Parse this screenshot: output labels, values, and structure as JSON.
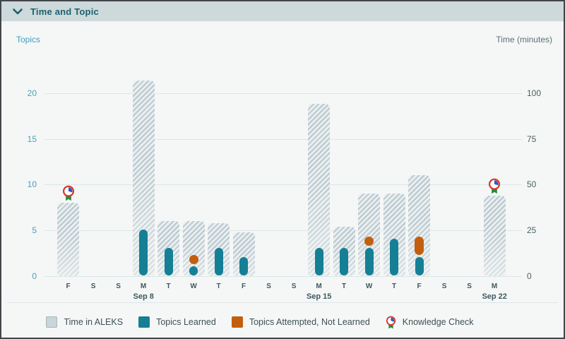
{
  "header": {
    "title": "Time and Topic"
  },
  "colors": {
    "header_bg": "#cdd9db",
    "header_text": "#1d6170",
    "time_bar_base": "#e9eef0",
    "time_bar_stripe": "#b9c8ce",
    "time_swatch": "#c9d5d9",
    "learned": "#157f95",
    "attempted": "#c35e0e",
    "kc_red": "#d6352a",
    "kc_blue": "#2f56c8",
    "kc_green": "#1e8e3e",
    "gridline": "#dde6e8",
    "left_tick_text": "#4aa0bc",
    "right_tick_text": "#4d5e63"
  },
  "legend": {
    "items": [
      {
        "key": "time_in_aleks",
        "label": "Time in ALEKS"
      },
      {
        "key": "topics_learned",
        "label": "Topics Learned"
      },
      {
        "key": "topics_attempted_not_learned",
        "label": "Topics Attempted, Not Learned"
      },
      {
        "key": "knowledge_check",
        "label": "Knowledge Check",
        "icon": "knowledge-check-icon"
      }
    ]
  },
  "chart_data": {
    "type": "bar",
    "title": "Time and Topic",
    "grid": true,
    "left_axis": {
      "label": "Topics",
      "min": 0,
      "max": 20,
      "ticks": [
        0,
        5,
        10,
        15,
        20
      ]
    },
    "right_axis": {
      "label": "Time (minutes)",
      "min": 0,
      "max": 100,
      "ticks": [
        0,
        25,
        50,
        75,
        100
      ]
    },
    "minutes_per_topic_unit": 5,
    "days": [
      {
        "day": "F",
        "date": "",
        "time_minutes": 40,
        "topics_learned": 0,
        "topics_attempted": 0,
        "knowledge_check": true
      },
      {
        "day": "S",
        "date": "",
        "time_minutes": 0,
        "topics_learned": 0,
        "topics_attempted": 0,
        "knowledge_check": false
      },
      {
        "day": "S",
        "date": "",
        "time_minutes": 0,
        "topics_learned": 0,
        "topics_attempted": 0,
        "knowledge_check": false
      },
      {
        "day": "M",
        "date": "Sep 8",
        "time_minutes": 107,
        "topics_learned": 5,
        "topics_attempted": 0,
        "knowledge_check": false
      },
      {
        "day": "T",
        "date": "",
        "time_minutes": 30,
        "topics_learned": 3,
        "topics_attempted": 0,
        "knowledge_check": false
      },
      {
        "day": "W",
        "date": "",
        "time_minutes": 30,
        "topics_learned": 1,
        "topics_attempted": 1,
        "knowledge_check": false
      },
      {
        "day": "T",
        "date": "",
        "time_minutes": 29,
        "topics_learned": 3,
        "topics_attempted": 0,
        "knowledge_check": false
      },
      {
        "day": "F",
        "date": "",
        "time_minutes": 24,
        "topics_learned": 2,
        "topics_attempted": 0,
        "knowledge_check": false
      },
      {
        "day": "S",
        "date": "",
        "time_minutes": 0,
        "topics_learned": 0,
        "topics_attempted": 0,
        "knowledge_check": false
      },
      {
        "day": "S",
        "date": "",
        "time_minutes": 0,
        "topics_learned": 0,
        "topics_attempted": 0,
        "knowledge_check": false
      },
      {
        "day": "M",
        "date": "Sep 15",
        "time_minutes": 94,
        "topics_learned": 3,
        "topics_attempted": 0,
        "knowledge_check": false
      },
      {
        "day": "T",
        "date": "",
        "time_minutes": 27,
        "topics_learned": 3,
        "topics_attempted": 0,
        "knowledge_check": false
      },
      {
        "day": "W",
        "date": "",
        "time_minutes": 45,
        "topics_learned": 3,
        "topics_attempted": 1,
        "knowledge_check": false
      },
      {
        "day": "T",
        "date": "",
        "time_minutes": 45,
        "topics_learned": 4,
        "topics_attempted": 0,
        "knowledge_check": false
      },
      {
        "day": "F",
        "date": "",
        "time_minutes": 55,
        "topics_learned": 2,
        "topics_attempted": 2,
        "knowledge_check": false
      },
      {
        "day": "S",
        "date": "",
        "time_minutes": 0,
        "topics_learned": 0,
        "topics_attempted": 0,
        "knowledge_check": false
      },
      {
        "day": "S",
        "date": "",
        "time_minutes": 0,
        "topics_learned": 0,
        "topics_attempted": 0,
        "knowledge_check": false
      },
      {
        "day": "M",
        "date": "Sep 22",
        "time_minutes": 44,
        "topics_learned": 0,
        "topics_attempted": 0,
        "knowledge_check": true
      }
    ]
  }
}
